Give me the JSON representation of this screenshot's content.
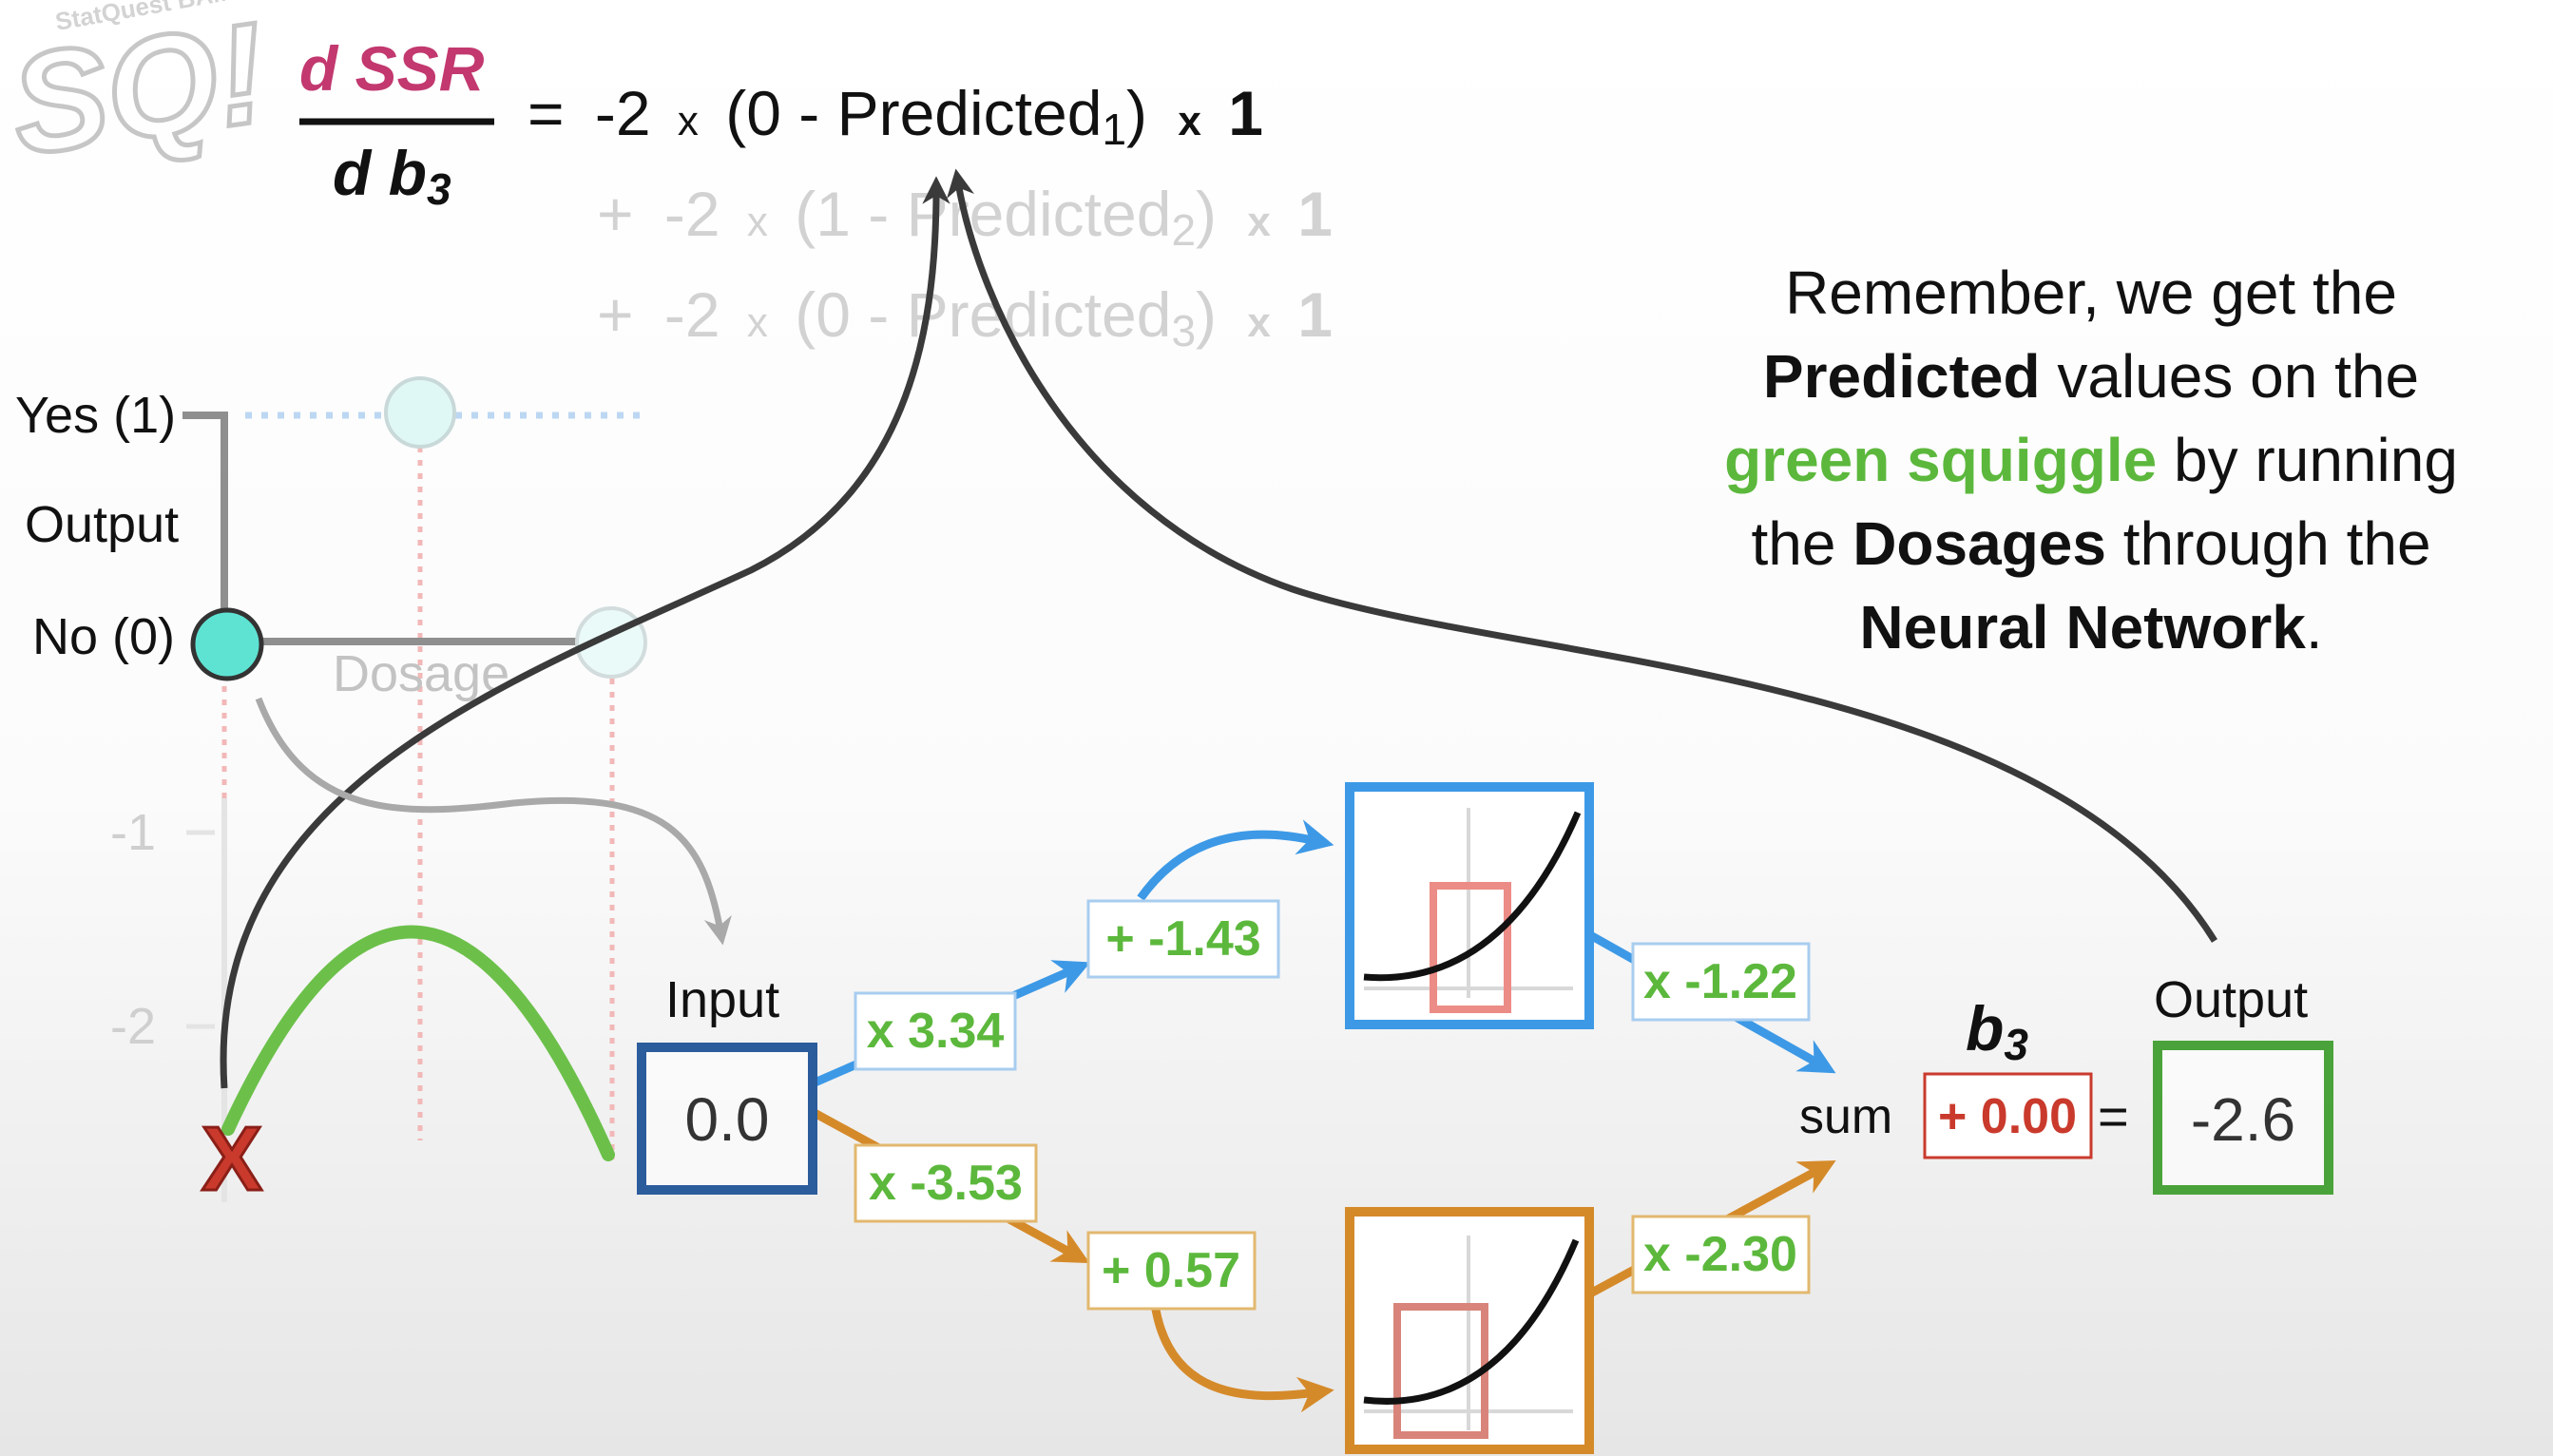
{
  "logo_text": "StatQuest BAM!!",
  "equation": {
    "numerator": "d SSR",
    "denominator": "d b",
    "denominator_sub": "3",
    "eq": "=",
    "times": "x",
    "line1": {
      "coef": "-2",
      "open": "(0 - Predicted",
      "sub": "1",
      "close": ")",
      "one": "1"
    },
    "line2": {
      "plus": "+",
      "coef": "-2",
      "open": "(1 - Predicted",
      "sub": "2",
      "close": ")",
      "one": "1"
    },
    "line3": {
      "plus": "+",
      "coef": "-2",
      "open": "(0 - Predicted",
      "sub": "3",
      "close": ")",
      "one": "1"
    }
  },
  "note": {
    "l1": "Remember, we get the",
    "l2a": "Predicted",
    "l2b": " values on the",
    "l3a": "green squiggle",
    "l3b": " by running",
    "l4a": "the ",
    "l4b": "Dosages",
    "l4c": " through the",
    "l5a": "Neural Network",
    "l5b": "."
  },
  "plot": {
    "yes_label": "Yes (1)",
    "output_label": "Output",
    "no_label": "No (0)",
    "dosage_label": "Dosage",
    "tick_m1": "-1",
    "tick_m2": "-2",
    "x_marker": "X"
  },
  "network": {
    "input_label": "Input",
    "input_value": "0.0",
    "w1": "x 3.34",
    "b1": "+ -1.43",
    "w2": "x -3.53",
    "b2": "+ 0.57",
    "w3": "x -1.22",
    "w4": "x -2.30",
    "sum_label": "sum",
    "b3_label": "b",
    "b3_sub": "3",
    "b3_value": "+ 0.00",
    "equals": "=",
    "output_label": "Output",
    "output_value": "-2.6"
  },
  "colors": {
    "pink": "#c2386f",
    "green": "#5cb83c",
    "blue": "#3d99e6",
    "orange": "#d58a2a",
    "red": "#c93a2c",
    "dark_blue": "#2b5c9c",
    "output_green": "#4aa33a",
    "teal": "#5ee3d3",
    "gray_text": "#c8c8c8"
  }
}
